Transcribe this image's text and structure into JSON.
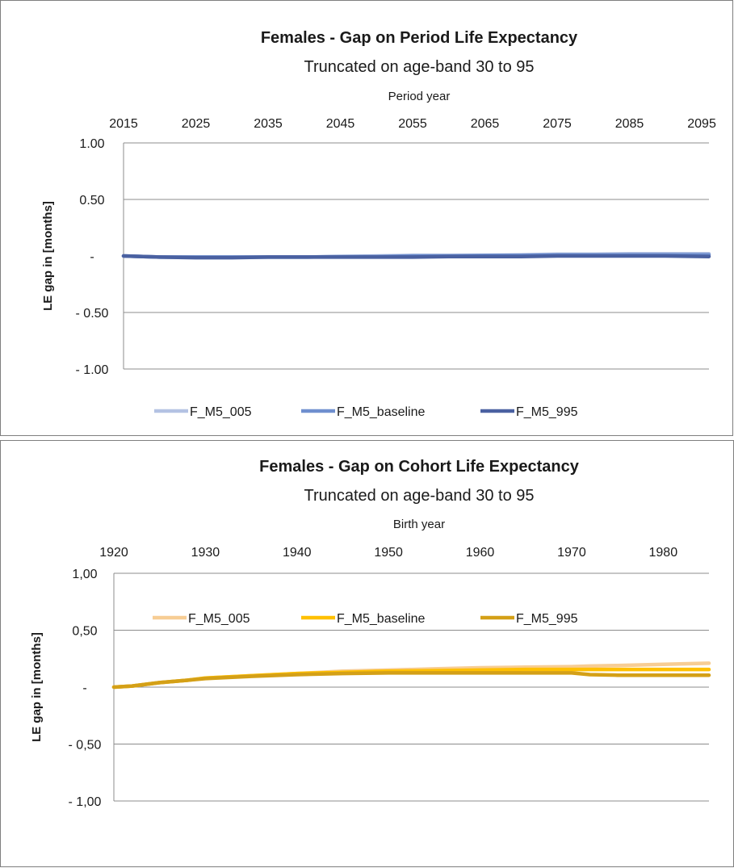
{
  "chart_data": [
    {
      "type": "line",
      "title": "Females - Gap on Period Life Expectancy",
      "subtitle": "Truncated on age-band 30 to 95",
      "xlabel": "Period year",
      "ylabel": "LE gap in [months]",
      "xlim": [
        2015,
        2096
      ],
      "ylim": [
        -1.0,
        1.0
      ],
      "x_ticks": [
        "2015",
        "2025",
        "2035",
        "2045",
        "2055",
        "2065",
        "2075",
        "2085",
        "2095"
      ],
      "x_tick_values": [
        2015,
        2025,
        2035,
        2045,
        2055,
        2065,
        2075,
        2085,
        2095
      ],
      "y_ticks": [
        "1.00",
        "0.50",
        "-",
        "- 0.50",
        "- 1.00"
      ],
      "y_tick_values": [
        1.0,
        0.5,
        0.0,
        -0.5,
        -1.0
      ],
      "grid": true,
      "legend_position": "bottom",
      "x": [
        2015,
        2020,
        2025,
        2030,
        2035,
        2040,
        2045,
        2050,
        2055,
        2060,
        2065,
        2070,
        2075,
        2080,
        2085,
        2090,
        2096
      ],
      "series": [
        {
          "name": "F_M5_005",
          "color": "#b4c2e3",
          "values": [
            0.0,
            -0.01,
            -0.01,
            -0.01,
            -0.01,
            -0.01,
            -0.005,
            0.0,
            0.005,
            0.005,
            0.005,
            0.01,
            0.015,
            0.015,
            0.02,
            0.02,
            0.02
          ]
        },
        {
          "name": "F_M5_baseline",
          "color": "#6f8fcf",
          "values": [
            0.0,
            -0.01,
            -0.01,
            -0.01,
            -0.01,
            -0.01,
            -0.005,
            -0.005,
            0.0,
            0.0,
            0.005,
            0.005,
            0.01,
            0.01,
            0.01,
            0.01,
            0.01
          ]
        },
        {
          "name": "F_M5_995",
          "color": "#4a61a1",
          "values": [
            0.0,
            -0.01,
            -0.015,
            -0.015,
            -0.01,
            -0.01,
            -0.01,
            -0.01,
            -0.01,
            -0.005,
            -0.005,
            -0.005,
            0.0,
            0.0,
            0.0,
            0.0,
            -0.005
          ]
        }
      ]
    },
    {
      "type": "line",
      "title": "Females - Gap on Cohort Life Expectancy",
      "subtitle": "Truncated on age-band 30 to 95",
      "xlabel": "Birth year",
      "ylabel": "LE gap in [months]",
      "xlim": [
        1920,
        1985
      ],
      "ylim": [
        -1.0,
        1.0
      ],
      "x_ticks": [
        "1920",
        "1930",
        "1940",
        "1950",
        "1960",
        "1970",
        "1980"
      ],
      "x_tick_values": [
        1920,
        1930,
        1940,
        1950,
        1960,
        1970,
        1980
      ],
      "y_ticks": [
        "1,00",
        "0,50",
        "-",
        "- 0,50",
        "- 1,00"
      ],
      "y_tick_values": [
        1.0,
        0.5,
        0.0,
        -0.5,
        -1.0
      ],
      "grid": true,
      "legend_position": "bottom",
      "x": [
        1920,
        1922,
        1925,
        1928,
        1930,
        1935,
        1940,
        1945,
        1950,
        1955,
        1960,
        1965,
        1970,
        1972,
        1975,
        1980,
        1985
      ],
      "series": [
        {
          "name": "F_M5_005",
          "color": "#f7cd94",
          "values": [
            0.0,
            0.01,
            0.04,
            0.06,
            0.08,
            0.1,
            0.12,
            0.14,
            0.15,
            0.16,
            0.17,
            0.175,
            0.18,
            0.185,
            0.19,
            0.2,
            0.21
          ]
        },
        {
          "name": "F_M5_baseline",
          "color": "#ffc000",
          "values": [
            0.0,
            0.01,
            0.04,
            0.06,
            0.08,
            0.1,
            0.12,
            0.13,
            0.14,
            0.145,
            0.15,
            0.155,
            0.155,
            0.155,
            0.155,
            0.155,
            0.155
          ]
        },
        {
          "name": "F_M5_995",
          "color": "#d4a017",
          "values": [
            0.0,
            0.01,
            0.04,
            0.06,
            0.075,
            0.095,
            0.11,
            0.12,
            0.125,
            0.125,
            0.125,
            0.125,
            0.125,
            0.11,
            0.105,
            0.105,
            0.105
          ]
        }
      ]
    }
  ]
}
